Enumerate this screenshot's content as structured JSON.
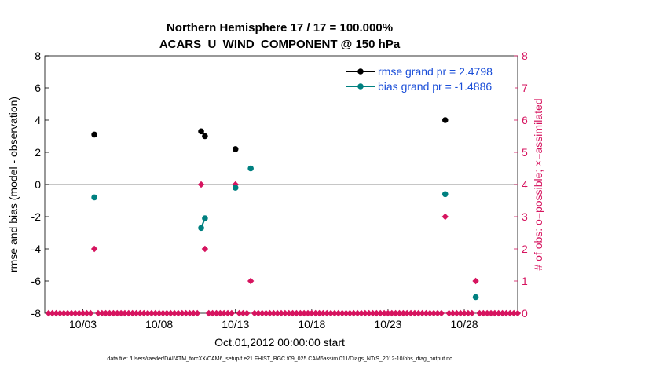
{
  "chart_data": {
    "type": "scatter",
    "title": "Northern Hemisphere 17 / 17 = 100.000%",
    "subtitle": "ACARS_U_WIND_COMPONENT @ 150 hPa",
    "xlabel": "Oct.01,2012 00:00:00 start",
    "ylabel": "rmse and bias (model - observation)",
    "y2label": "# of obs: o=possible; ×=assimilated",
    "footnote": "data file: /Users/raeder/DAI/ATM_forcXX/CAM6_setup/f.e21.FHIST_BGC.f09_025.CAM6assim.011/Diags_NTrS_2012-10/obs_diag_output.nc",
    "x_tick_labels": [
      "10/03",
      "10/08",
      "10/13",
      "10/18",
      "10/23",
      "10/28"
    ],
    "x_tick_days": [
      3,
      8,
      13,
      18,
      23,
      28
    ],
    "xlim": [
      0.5,
      31.5
    ],
    "ylim": [
      -8,
      8
    ],
    "y_ticks": [
      -8,
      -6,
      -4,
      -2,
      0,
      2,
      4,
      6,
      8
    ],
    "y2lim": [
      0,
      8
    ],
    "y2_ticks": [
      0,
      1,
      2,
      3,
      4,
      5,
      6,
      7,
      8
    ],
    "grid": false,
    "legend_placement": "top-right",
    "colors": {
      "rmse": "#000000",
      "bias": "#008080",
      "obs": "#d6145f",
      "zero_line": "#b3b3b3",
      "legend_text": "#1a4ed8"
    },
    "series": [
      {
        "name": "rmse grand pr = 2.4798",
        "key": "rmse",
        "segments": [
          [
            [
              3.75,
              3.1
            ]
          ],
          [
            [
              10.75,
              3.3
            ],
            [
              11.0,
              3.0
            ]
          ],
          [
            [
              13.0,
              2.2
            ]
          ],
          [
            [
              26.75,
              4.0
            ]
          ]
        ]
      },
      {
        "name": "bias grand pr = -1.4886",
        "key": "bias",
        "segments": [
          [
            [
              3.75,
              -0.8
            ]
          ],
          [
            [
              10.75,
              -2.7
            ],
            [
              11.0,
              -2.1
            ]
          ],
          [
            [
              13.0,
              -0.2
            ]
          ],
          [
            [
              14.0,
              1.0
            ]
          ],
          [
            [
              26.75,
              -0.6
            ]
          ],
          [
            [
              28.75,
              -7.0
            ]
          ]
        ]
      }
    ],
    "obs_possible": {
      "x_start": 0.75,
      "x_step": 0.25,
      "nonzero": {
        "3.75": 2,
        "10.75": 4,
        "11.0": 2,
        "13.0": 4,
        "14.0": 1,
        "26.75": 3,
        "28.75": 1
      }
    }
  }
}
